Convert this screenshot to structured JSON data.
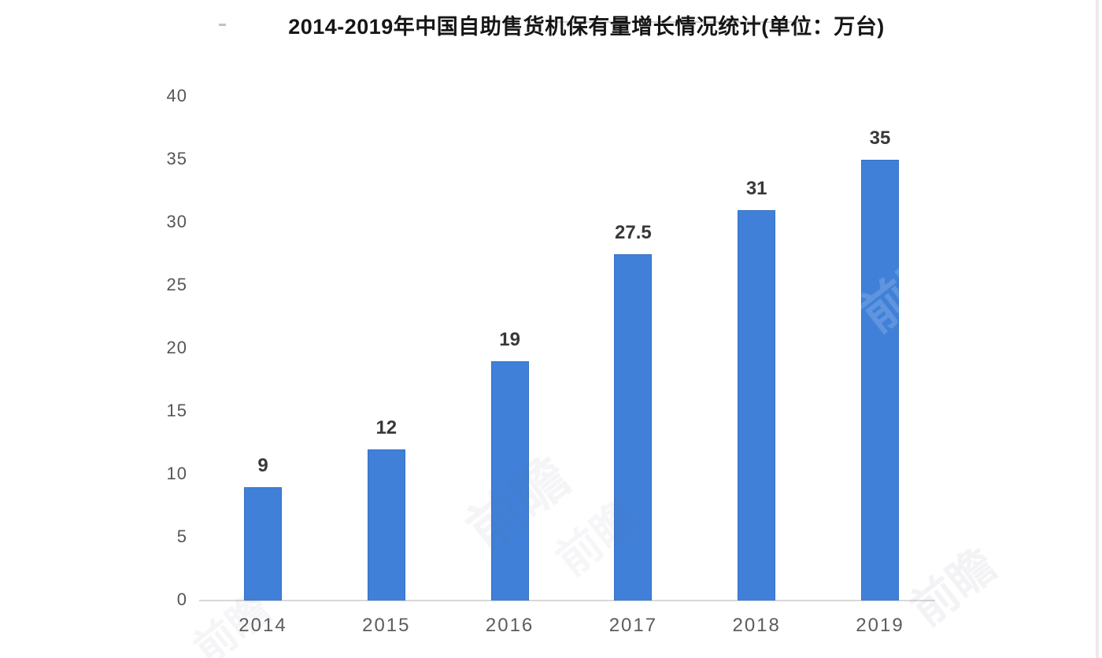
{
  "page": {
    "background": "#ffffff",
    "right_edge_strip_color": "#ebebeb"
  },
  "chart_data": {
    "type": "bar",
    "title": "2014-2019年中国自助售货机保有量增长情况统计(单位：万台)",
    "categories": [
      "2014",
      "2015",
      "2016",
      "2017",
      "2018",
      "2019"
    ],
    "values": [
      9,
      12,
      19,
      27.5,
      31,
      35
    ],
    "value_labels": [
      "9",
      "12",
      "19",
      "27.5",
      "31",
      "35"
    ],
    "unit": "万台",
    "xlabel": "",
    "ylabel": "",
    "ylim": [
      0,
      40
    ],
    "yticks": [
      0,
      5,
      10,
      15,
      20,
      25,
      30,
      35,
      40
    ],
    "grid": false,
    "legend": "none",
    "bar_color": "#4080d8",
    "bar_edge_color": "#2f6cbe",
    "axis_line_color": "#d8d8d8",
    "tick_label_color": "#565656",
    "value_label_color": "#383838",
    "title_color": "#161616"
  },
  "watermark": {
    "text": "前瞻"
  }
}
